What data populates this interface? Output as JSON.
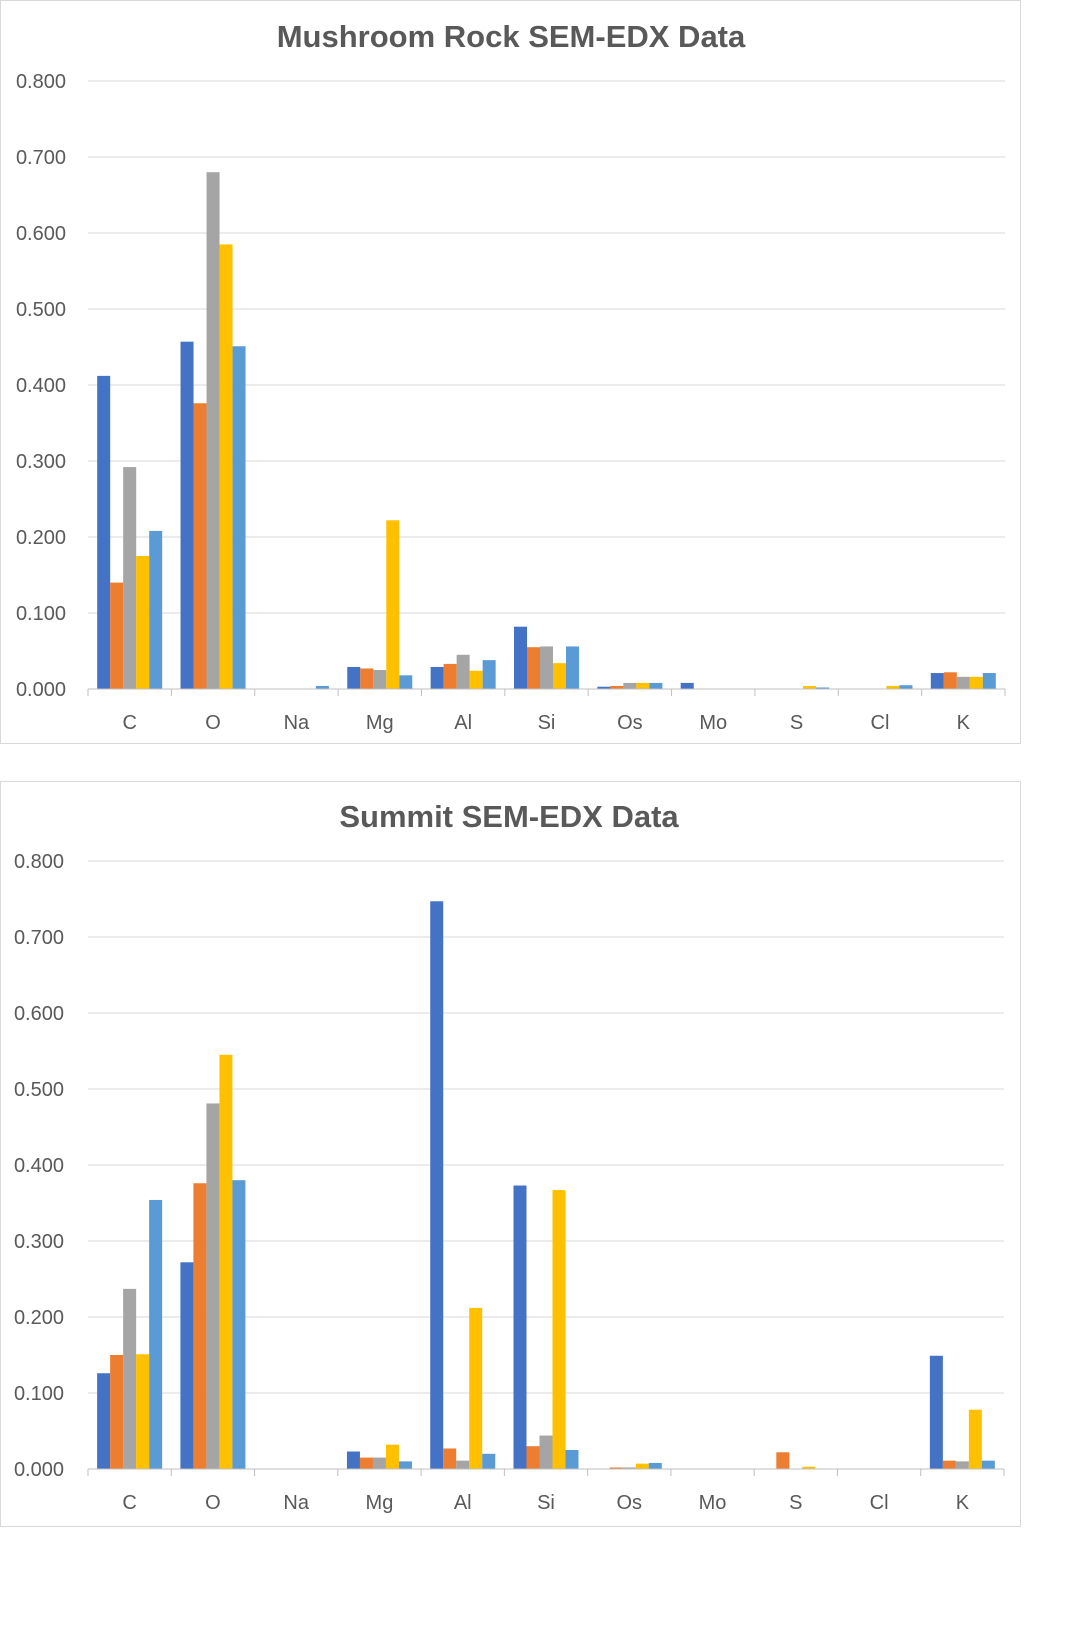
{
  "colors": {
    "series": [
      "#4472c4",
      "#ed7d31",
      "#a5a5a5",
      "#ffc000",
      "#5b9bd5"
    ],
    "gridline": "#d9d9d9",
    "axis": "#bfbfbf",
    "text": "#595959"
  },
  "chart_data": [
    {
      "type": "bar",
      "title": "Mushroom Rock SEM-EDX Data",
      "xlabel": "",
      "ylabel": "",
      "ylim": [
        0,
        0.8
      ],
      "yticks": [
        "0.000",
        "0.100",
        "0.200",
        "0.300",
        "0.400",
        "0.500",
        "0.600",
        "0.700",
        "0.800"
      ],
      "grid": true,
      "legend": "none",
      "categories": [
        "C",
        "O",
        "Na",
        "Mg",
        "Al",
        "Si",
        "Os",
        "Mo",
        "S",
        "Cl",
        "K"
      ],
      "series": [
        {
          "values": [
            0.412,
            0.457,
            0,
            0.029,
            0.029,
            0.082,
            0.003,
            0.008,
            0,
            0,
            0.021
          ]
        },
        {
          "values": [
            0.14,
            0.376,
            0,
            0.027,
            0.033,
            0.055,
            0.004,
            0,
            0,
            0,
            0.022
          ]
        },
        {
          "values": [
            0.292,
            0.68,
            0,
            0.025,
            0.045,
            0.056,
            0.008,
            0,
            0,
            0,
            0.016
          ]
        },
        {
          "values": [
            0.175,
            0.585,
            0,
            0.222,
            0.024,
            0.034,
            0.008,
            0,
            0.004,
            0.004,
            0.016
          ]
        },
        {
          "values": [
            0.208,
            0.451,
            0.004,
            0.018,
            0.038,
            0.056,
            0.008,
            0,
            0.002,
            0.005,
            0.021
          ]
        }
      ]
    },
    {
      "type": "bar",
      "title": "Summit SEM-EDX Data",
      "xlabel": "",
      "ylabel": "",
      "ylim": [
        0,
        0.8
      ],
      "yticks": [
        "0.000",
        "0.100",
        "0.200",
        "0.300",
        "0.400",
        "0.500",
        "0.600",
        "0.700",
        "0.800"
      ],
      "grid": true,
      "legend": "none",
      "categories": [
        "C",
        "O",
        "Na",
        "Mg",
        "Al",
        "Si",
        "Os",
        "Mo",
        "S",
        "Cl",
        "K"
      ],
      "series": [
        {
          "values": [
            0.126,
            0.272,
            0,
            0.023,
            0.747,
            0.373,
            0,
            0,
            0,
            0,
            0.149
          ]
        },
        {
          "values": [
            0.15,
            0.376,
            0,
            0.015,
            0.027,
            0.03,
            0.002,
            0,
            0.022,
            0,
            0.011
          ]
        },
        {
          "values": [
            0.237,
            0.481,
            0,
            0.015,
            0.011,
            0.044,
            0.002,
            0,
            0,
            0,
            0.01
          ]
        },
        {
          "values": [
            0.151,
            0.545,
            0,
            0.032,
            0.212,
            0.367,
            0.007,
            0,
            0.003,
            0,
            0.078
          ]
        },
        {
          "values": [
            0.354,
            0.38,
            0,
            0.01,
            0.02,
            0.025,
            0.008,
            0,
            0,
            0,
            0.011
          ]
        }
      ]
    }
  ]
}
